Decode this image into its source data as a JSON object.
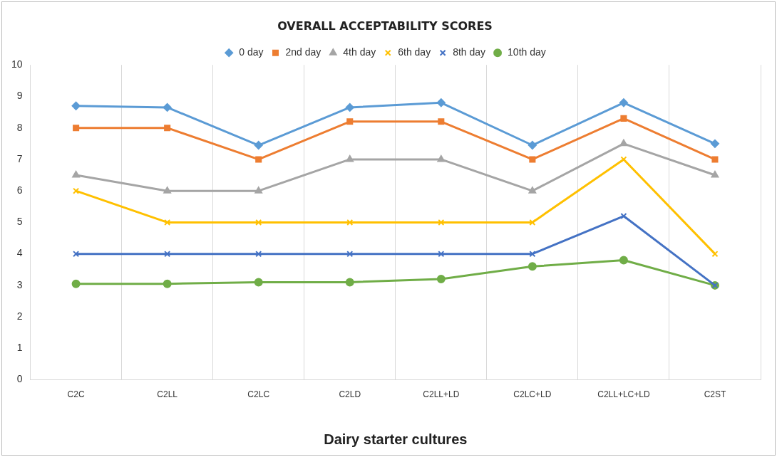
{
  "chart_data": {
    "type": "line",
    "title": "OVERALL ACCEPTABILITY SCORES",
    "xlabel": "Dairy starter cultures",
    "categories": [
      "C2C",
      "C2LL",
      "C2LC",
      "C2LD",
      "C2LL+LD",
      "C2LC+LD",
      "C2LL+LC+LD",
      "C2ST"
    ],
    "series": [
      {
        "name": "0 day",
        "color": "#5b9bd5",
        "marker": "diamond",
        "values": [
          8.7,
          8.65,
          7.45,
          8.65,
          8.8,
          7.45,
          8.8,
          7.5
        ]
      },
      {
        "name": "2nd day",
        "color": "#ed7d31",
        "marker": "square",
        "values": [
          8.0,
          8.0,
          7.0,
          8.2,
          8.2,
          7.0,
          8.3,
          7.0
        ]
      },
      {
        "name": "4th day",
        "color": "#a5a5a5",
        "marker": "triangle",
        "values": [
          6.5,
          6.0,
          6.0,
          7.0,
          7.0,
          6.0,
          7.5,
          6.5
        ]
      },
      {
        "name": "6th day",
        "color": "#ffc000",
        "marker": "cross",
        "values": [
          6,
          5,
          5,
          5,
          5,
          5,
          7,
          4
        ]
      },
      {
        "name": "8th day",
        "color": "#4472c4",
        "marker": "cross",
        "values": [
          4,
          4,
          4,
          4,
          4,
          4,
          5.2,
          3
        ]
      },
      {
        "name": "10th day",
        "color": "#70ad47",
        "marker": "circle",
        "values": [
          3.05,
          3.05,
          3.1,
          3.1,
          3.2,
          3.6,
          3.8,
          3.0
        ]
      }
    ],
    "ylim": [
      0,
      10
    ],
    "yticks": [
      0,
      1,
      2,
      3,
      4,
      5,
      6,
      7,
      8,
      9,
      10
    ],
    "grid": "x",
    "legend": "top"
  }
}
